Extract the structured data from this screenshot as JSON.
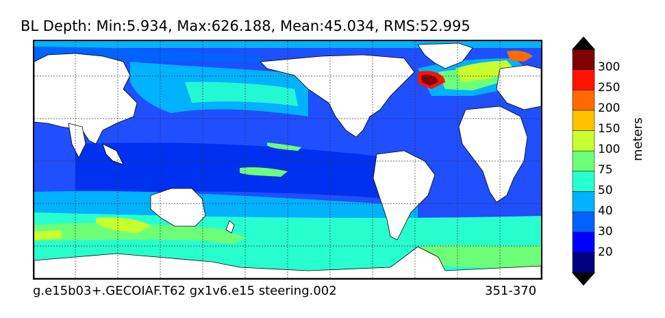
{
  "title": "BL Depth: Min:5.934, Max:626.188, Mean:45.034, RMS:52.995",
  "footer": {
    "case_name": "g.e15b03+.GECOIAF.T62 gx1v6.e15 steering.002",
    "years": "351-370"
  },
  "colorbar": {
    "label": "meters",
    "ticks": [
      "300",
      "250",
      "200",
      "150",
      "100",
      "75",
      "50",
      "40",
      "30",
      "20"
    ],
    "colors": [
      "#000080",
      "#0000ff",
      "#0062ff",
      "#00b2ff",
      "#28ffce",
      "#6dff78",
      "#c8ff2f",
      "#ffc200",
      "#ff6a00",
      "#ff1200",
      "#800000"
    ]
  },
  "map": {
    "ocean_base_color": "#1f4fff",
    "land_color": "#ffffff",
    "grid": true
  }
}
